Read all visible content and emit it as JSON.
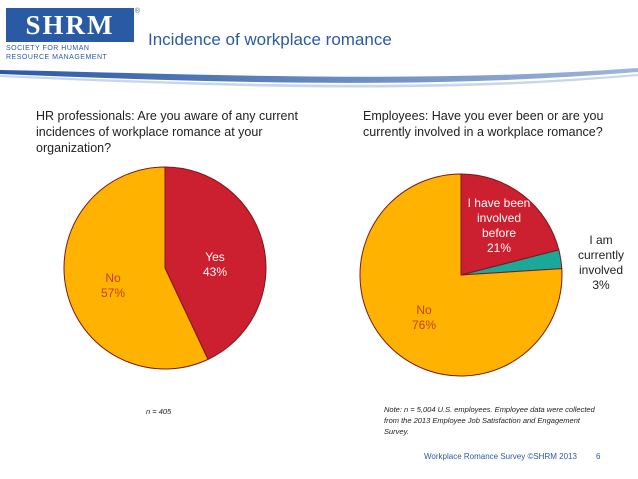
{
  "logo": {
    "mark": "SHRM",
    "reg": "®",
    "line1": "SOCIETY FOR HUMAN",
    "line2": "RESOURCE MANAGEMENT"
  },
  "slide": {
    "title": "Incidence of workplace romance",
    "footer": "Workplace Romance Survey ©SHRM 2013",
    "page_number": "6"
  },
  "colors": {
    "red": "#cc1f2f",
    "gold": "#ffb300",
    "teal": "#1aa89a",
    "brand": "#2b5aa5"
  },
  "chart_data": [
    {
      "type": "pie",
      "title": "HR professionals: Are you aware of any current incidences of workplace romance at your organization?",
      "slices": [
        {
          "label": "Yes",
          "value": 43,
          "display": "43%",
          "color": "#cc1f2f"
        },
        {
          "label": "No",
          "value": 57,
          "display": "57%",
          "color": "#ffb300"
        }
      ],
      "note": "n = 405"
    },
    {
      "type": "pie",
      "title": "Employees: Have you ever been or are you currently involved in a workplace romance?",
      "slices": [
        {
          "label": "I have been involved before",
          "label_lines": [
            "I have been",
            "involved",
            "before"
          ],
          "value": 21,
          "display": "21%",
          "color": "#cc1f2f"
        },
        {
          "label": "I am currently involved",
          "label_lines": [
            "I am",
            "currently",
            "involved"
          ],
          "value": 3,
          "display": "3%",
          "color": "#1aa89a"
        },
        {
          "label": "No",
          "label_lines": [
            "No"
          ],
          "value": 76,
          "display": "76%",
          "color": "#ffb300"
        }
      ],
      "note": "Note: n = 5,004 U.S. employees. Employee data were collected from the 2013 Employee Job Satisfaction and Engagement Survey."
    }
  ]
}
